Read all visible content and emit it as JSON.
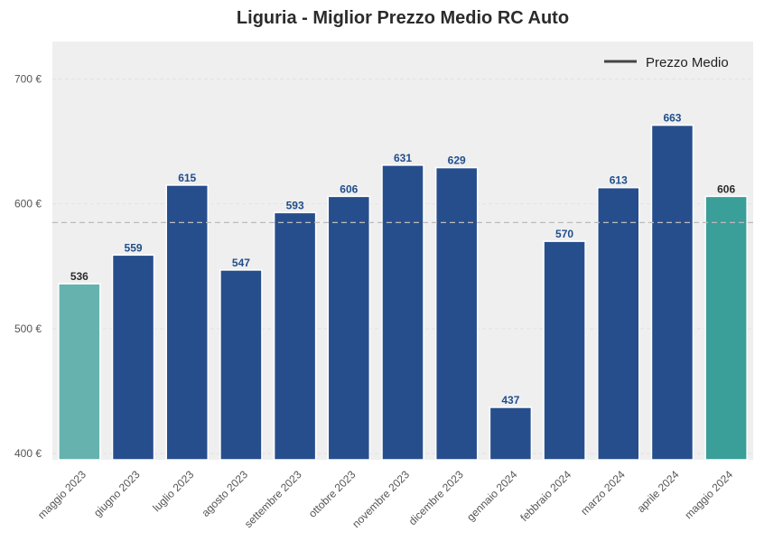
{
  "chart_data": {
    "type": "bar",
    "title": "Liguria - Miglior Prezzo Medio RC Auto",
    "categories": [
      "maggio 2023",
      "giugno 2023",
      "luglio 2023",
      "agosto 2023",
      "settembre 2023",
      "ottobre 2023",
      "novembre 2023",
      "dicembre 2023",
      "gennaio 2024",
      "febbraio 2024",
      "marzo 2024",
      "aprile 2024",
      "maggio 2024"
    ],
    "values": [
      536,
      559,
      615,
      547,
      593,
      606,
      631,
      629,
      437,
      570,
      613,
      663,
      606
    ],
    "value_labels": [
      "536",
      "559",
      "615",
      "547",
      "593",
      "606",
      "631",
      "629",
      "437",
      "570",
      "613",
      "663",
      "606"
    ],
    "ylim": [
      395,
      730
    ],
    "yticks": [
      400,
      500,
      600,
      700
    ],
    "ytick_labels": [
      "400 €",
      "500 €",
      "600 €",
      "700 €"
    ],
    "reference_line": {
      "name": "Prezzo Medio",
      "value": 585
    },
    "legend": {
      "label": "Prezzo Medio",
      "position": "top-right"
    },
    "grid": true,
    "colors": {
      "bar_default": "#274e8c",
      "bar_first": "#66b2ae",
      "bar_last": "#3a9e99",
      "label_default": "#1f4e8c",
      "label_highlight": "#2b2b2b",
      "plot_background": "#efefef",
      "reference_line": "#bbbbbb"
    }
  }
}
